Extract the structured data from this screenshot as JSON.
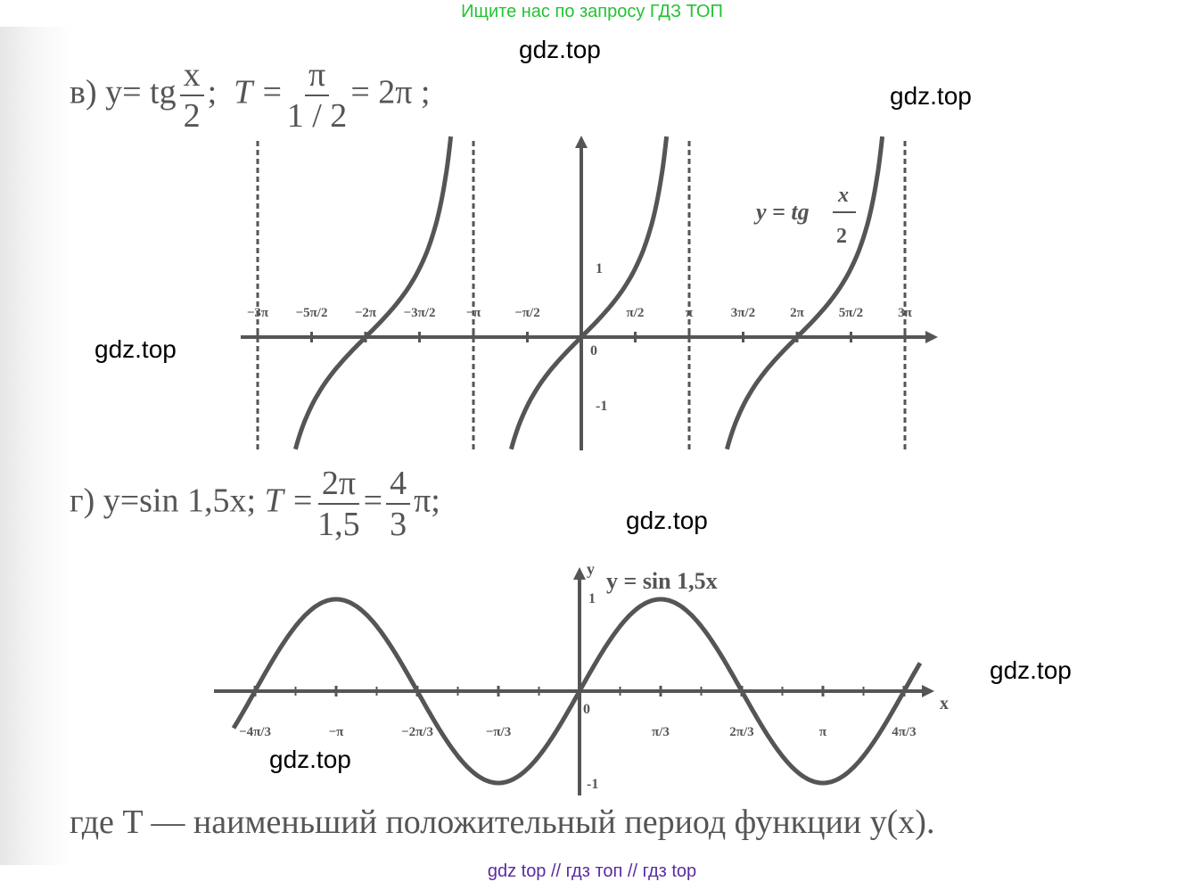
{
  "banner": "Ищите нас по запросу ГДЗ ТОП",
  "watermarks": [
    "gdz.top",
    "gdz.top",
    "gdz.top",
    "gdz.top",
    "gdz.top",
    "gdz.top"
  ],
  "part_v": {
    "prefix": "в) y= tg",
    "f_num": "x",
    "f_den": "2",
    "sep": ";",
    "T": "T =",
    "T_num": "π",
    "T_den": "1 / 2",
    "result": "= 2π ;"
  },
  "graph_v": {
    "label_lhs": "y = tg",
    "label_num": "x",
    "label_den": "2",
    "ticks": [
      "−3π",
      "−5π/2",
      "−2π",
      "−3π/2",
      "−π",
      "−π/2",
      "π/2",
      "π",
      "3π/2",
      "2π",
      "5π/2",
      "3π"
    ],
    "y1": "1",
    "ym1": "-1",
    "origin": "0"
  },
  "part_g": {
    "prefix": "г) y=sin 1,5x;",
    "T": "T =",
    "T_num": "2π",
    "T_den": "1,5",
    "eq": "=",
    "r_num": "4",
    "r_den": "3",
    "result": "π;"
  },
  "graph_g": {
    "label": "y = sin 1,5x",
    "yaxis": "y",
    "xaxis": "x",
    "y1": "1",
    "ym1": "-1",
    "origin": "0",
    "ticks": [
      "−4π/3",
      "−π",
      "−2π/3",
      "−π/3",
      "π/3",
      "2π/3",
      "π",
      "4π/3"
    ]
  },
  "note": "где T — наименьший положительный период функции y(x).",
  "footer": "gdz top  //  гдз топ  //  гдз top"
}
